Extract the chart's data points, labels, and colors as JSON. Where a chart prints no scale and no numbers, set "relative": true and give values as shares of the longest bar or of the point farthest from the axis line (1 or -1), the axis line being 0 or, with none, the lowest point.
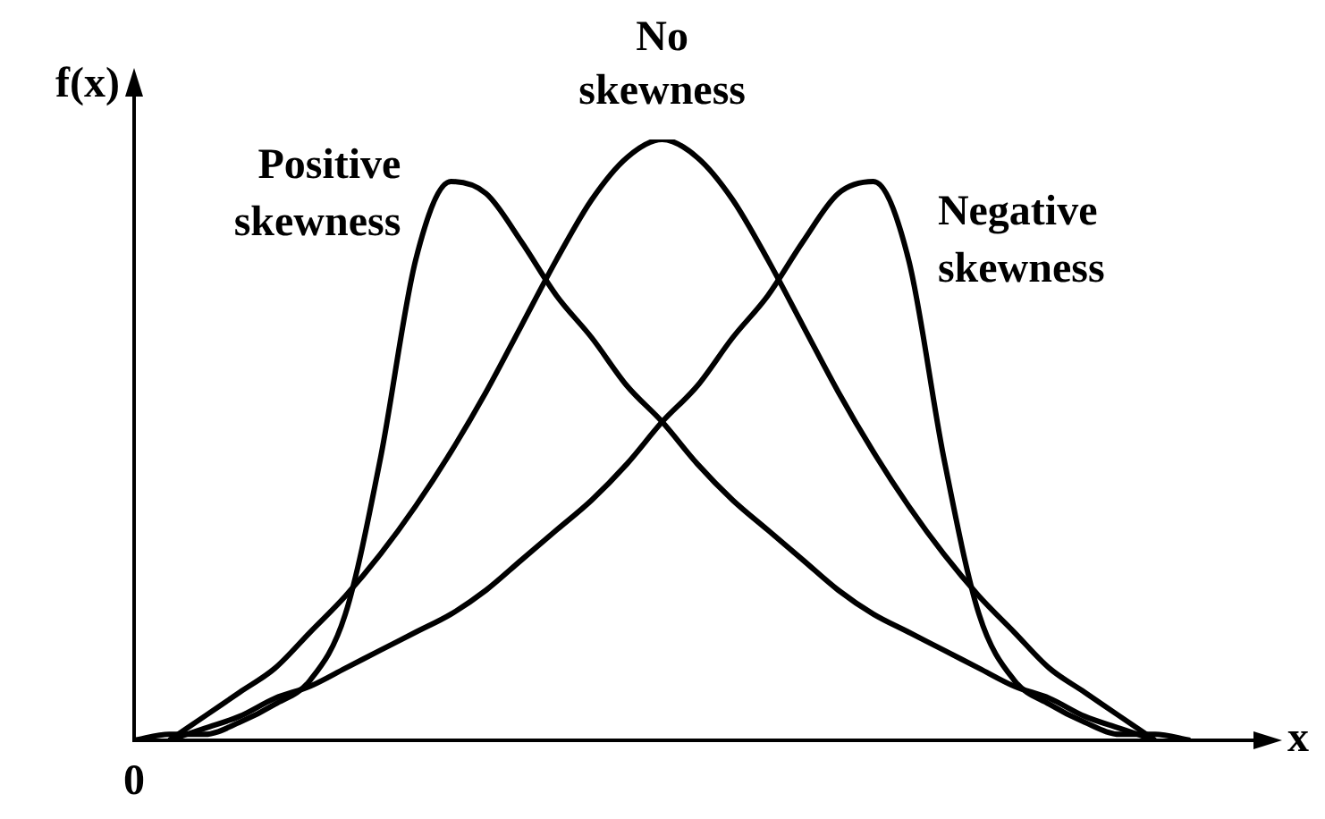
{
  "chart_data": {
    "type": "line",
    "relative": true,
    "xlabel": "x",
    "ylabel": "f(x)",
    "legend": false,
    "grid": false,
    "annotations": [
      "0"
    ],
    "categories": [
      null,
      null,
      null,
      null,
      null,
      null,
      null,
      null,
      null,
      null,
      null,
      null,
      null,
      null,
      null,
      null,
      null,
      null,
      null,
      null,
      null,
      null,
      null,
      null,
      null,
      null,
      null,
      null,
      null,
      null,
      null,
      null,
      null
    ],
    "series": [
      {
        "name": "Positive skewness",
        "color": "#000000",
        "values": [
          0,
          0.01,
          0.01,
          0.03,
          0.06,
          0.1,
          0.21,
          0.47,
          0.8,
          0.93,
          0.91,
          0.83,
          0.74,
          0.67,
          0.59,
          0.53,
          0.46,
          0.4,
          0.35,
          0.3,
          0.25,
          0.21,
          0.18,
          0.15,
          0.12,
          0.09,
          0.07,
          0.04,
          0.02,
          0,
          null,
          null,
          null
        ]
      },
      {
        "name": "No skewness",
        "color": "#000000",
        "values": [
          null,
          0,
          0.04,
          0.08,
          0.12,
          0.18,
          0.24,
          0.31,
          0.39,
          0.48,
          0.58,
          0.69,
          0.8,
          0.9,
          0.97,
          1,
          0.97,
          0.9,
          0.8,
          0.69,
          0.58,
          0.48,
          0.39,
          0.31,
          0.24,
          0.18,
          0.12,
          0.08,
          0.04,
          0,
          null,
          null,
          null
        ]
      },
      {
        "name": "Negative skewness",
        "color": "#000000",
        "values": [
          null,
          0,
          0.02,
          0.04,
          0.07,
          0.09,
          0.12,
          0.15,
          0.18,
          0.21,
          0.25,
          0.3,
          0.35,
          0.4,
          0.46,
          0.53,
          0.59,
          0.67,
          0.74,
          0.83,
          0.91,
          0.93,
          0.8,
          0.47,
          0.21,
          0.1,
          0.06,
          0.03,
          0.01,
          0.01,
          0,
          null,
          null
        ]
      }
    ]
  }
}
